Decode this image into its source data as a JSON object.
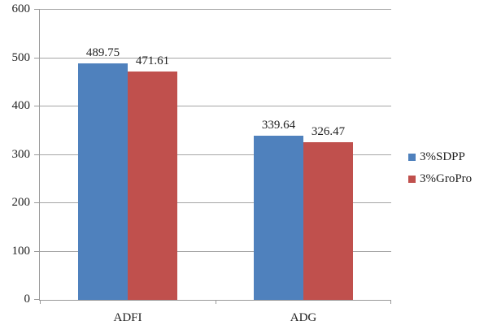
{
  "chart_data": {
    "type": "bar",
    "title": "",
    "xlabel": "",
    "ylabel": "",
    "categories": [
      "ADFI",
      "ADG"
    ],
    "series": [
      {
        "name": "3%SDPP",
        "color": "#4F81BD",
        "values": [
          489.75,
          339.64
        ]
      },
      {
        "name": "3%GroPro",
        "color": "#C0504D",
        "values": [
          471.61,
          326.47
        ]
      }
    ],
    "data_labels": [
      [
        "489.75",
        "339.64"
      ],
      [
        "471.61",
        "326.47"
      ]
    ],
    "ylim": [
      0,
      600
    ],
    "ytick_step": 100,
    "ytick_labels": [
      "0",
      "100",
      "200",
      "300",
      "400",
      "500",
      "600"
    ],
    "grid": true,
    "legend_position": "right",
    "legend_entries": [
      "3%SDPP",
      "3%GroPro"
    ]
  },
  "colors": {
    "series_blue": "#4F81BD",
    "series_red": "#C0504D",
    "gridline": "#a6a6a6",
    "axis": "#9a9a9a",
    "text": "#1f1f1f",
    "background": "#ffffff"
  }
}
